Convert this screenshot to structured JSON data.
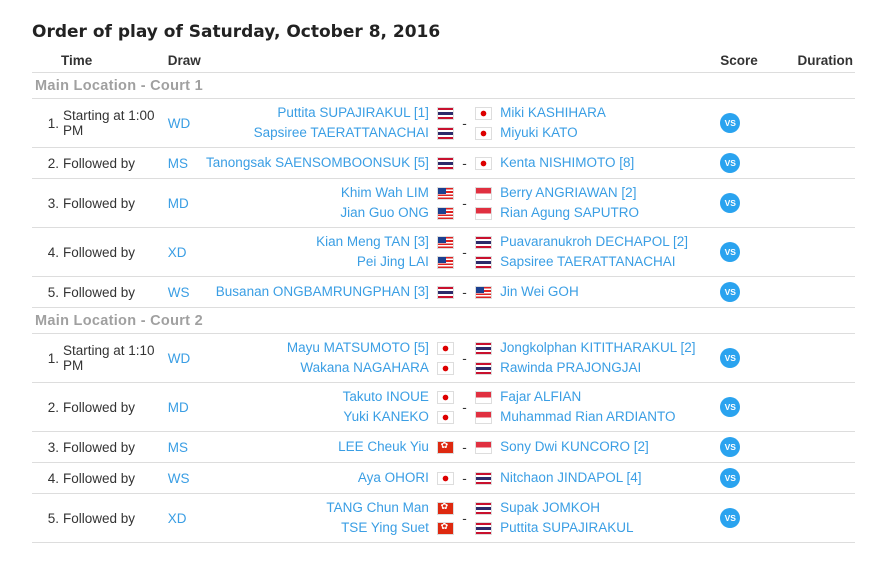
{
  "title": "Order of play of Saturday, October 8, 2016",
  "headers": {
    "time": "Time",
    "draw": "Draw",
    "score": "Score",
    "duration": "Duration"
  },
  "vs_label": "VS",
  "courts": [
    {
      "name": "Main Location - Court 1",
      "matches": [
        {
          "num": "1.",
          "time": "Starting at 1:00 PM",
          "draw": "WD",
          "team1": [
            {
              "name": "Puttita SUPAJIRAKUL [1]",
              "flag": "TH"
            },
            {
              "name": "Sapsiree TAERATTANACHAI",
              "flag": "TH"
            }
          ],
          "team2": [
            {
              "name": "Miki KASHIHARA",
              "flag": "JP"
            },
            {
              "name": "Miyuki KATO",
              "flag": "JP"
            }
          ]
        },
        {
          "num": "2.",
          "time": "Followed by",
          "draw": "MS",
          "team1": [
            {
              "name": "Tanongsak SAENSOMBOONSUK [5]",
              "flag": "TH"
            }
          ],
          "team2": [
            {
              "name": "Kenta NISHIMOTO [8]",
              "flag": "JP"
            }
          ]
        },
        {
          "num": "3.",
          "time": "Followed by",
          "draw": "MD",
          "team1": [
            {
              "name": "Khim Wah LIM",
              "flag": "MY"
            },
            {
              "name": "Jian Guo ONG",
              "flag": "MY"
            }
          ],
          "team2": [
            {
              "name": "Berry ANGRIAWAN [2]",
              "flag": "ID"
            },
            {
              "name": "Rian Agung SAPUTRO",
              "flag": "ID"
            }
          ]
        },
        {
          "num": "4.",
          "time": "Followed by",
          "draw": "XD",
          "team1": [
            {
              "name": "Kian Meng TAN [3]",
              "flag": "MY"
            },
            {
              "name": "Pei Jing LAI",
              "flag": "MY"
            }
          ],
          "team2": [
            {
              "name": "Puavaranukroh DECHAPOL [2]",
              "flag": "TH"
            },
            {
              "name": "Sapsiree TAERATTANACHAI",
              "flag": "TH"
            }
          ]
        },
        {
          "num": "5.",
          "time": "Followed by",
          "draw": "WS",
          "team1": [
            {
              "name": "Busanan ONGBAMRUNGPHAN [3]",
              "flag": "TH"
            }
          ],
          "team2": [
            {
              "name": "Jin Wei GOH",
              "flag": "MY"
            }
          ]
        }
      ]
    },
    {
      "name": "Main Location - Court 2",
      "matches": [
        {
          "num": "1.",
          "time": "Starting at 1:10 PM",
          "draw": "WD",
          "team1": [
            {
              "name": "Mayu MATSUMOTO [5]",
              "flag": "JP"
            },
            {
              "name": "Wakana NAGAHARA",
              "flag": "JP"
            }
          ],
          "team2": [
            {
              "name": "Jongkolphan KITITHARAKUL [2]",
              "flag": "TH"
            },
            {
              "name": "Rawinda PRAJONGJAI",
              "flag": "TH"
            }
          ]
        },
        {
          "num": "2.",
          "time": "Followed by",
          "draw": "MD",
          "team1": [
            {
              "name": "Takuto INOUE",
              "flag": "JP"
            },
            {
              "name": "Yuki KANEKO",
              "flag": "JP"
            }
          ],
          "team2": [
            {
              "name": "Fajar ALFIAN",
              "flag": "ID"
            },
            {
              "name": "Muhammad Rian ARDIANTO",
              "flag": "ID"
            }
          ]
        },
        {
          "num": "3.",
          "time": "Followed by",
          "draw": "MS",
          "team1": [
            {
              "name": "LEE Cheuk Yiu",
              "flag": "HK"
            }
          ],
          "team2": [
            {
              "name": "Sony Dwi KUNCORO [2]",
              "flag": "ID"
            }
          ]
        },
        {
          "num": "4.",
          "time": "Followed by",
          "draw": "WS",
          "team1": [
            {
              "name": "Aya OHORI",
              "flag": "JP"
            }
          ],
          "team2": [
            {
              "name": "Nitchaon JINDAPOL [4]",
              "flag": "TH"
            }
          ]
        },
        {
          "num": "5.",
          "time": "Followed by",
          "draw": "XD",
          "team1": [
            {
              "name": "TANG Chun Man",
              "flag": "HK"
            },
            {
              "name": "TSE Ying Suet",
              "flag": "HK"
            }
          ],
          "team2": [
            {
              "name": "Supak JOMKOH",
              "flag": "TH"
            },
            {
              "name": "Puttita SUPAJIRAKUL",
              "flag": "TH"
            }
          ]
        }
      ]
    }
  ]
}
